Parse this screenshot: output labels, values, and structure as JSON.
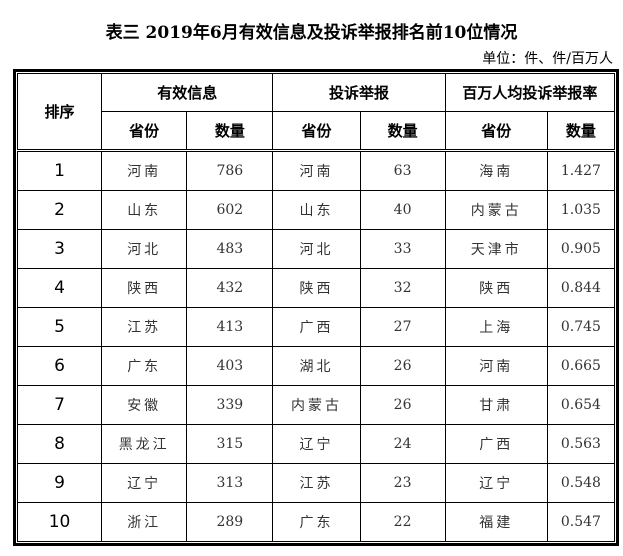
{
  "title": "表三 2019年6月有效信息及投诉举报排名前10位情况",
  "unit": "单位：件、件/百万人",
  "headers": {
    "rank": "排序",
    "groups": [
      "有效信息",
      "投诉举报",
      "百万人均投诉举报率"
    ],
    "sub": [
      "省份",
      "数量",
      "省份",
      "数量",
      "省份",
      "数量"
    ]
  },
  "rows": [
    [
      "1",
      "河南",
      "786",
      "河南",
      "63",
      "海南",
      "1.427"
    ],
    [
      "2",
      "山东",
      "602",
      "山东",
      "40",
      "内蒙古",
      "1.035"
    ],
    [
      "3",
      "河北",
      "483",
      "河北",
      "33",
      "天津市",
      "0.905"
    ],
    [
      "4",
      "陕西",
      "432",
      "陕西",
      "32",
      "陕西",
      "0.844"
    ],
    [
      "5",
      "江苏",
      "413",
      "广西",
      "27",
      "上海",
      "0.745"
    ],
    [
      "6",
      "广东",
      "403",
      "湖北",
      "26",
      "河南",
      "0.665"
    ],
    [
      "7",
      "安徽",
      "339",
      "内蒙古",
      "26",
      "甘肃",
      "0.654"
    ],
    [
      "8",
      "黑龙江",
      "315",
      "辽宁",
      "24",
      "广西",
      "0.563"
    ],
    [
      "9",
      "辽宁",
      "313",
      "江苏",
      "23",
      "辽宁",
      "0.548"
    ],
    [
      "10",
      "浙江",
      "289",
      "广东",
      "22",
      "福建",
      "0.547"
    ]
  ]
}
